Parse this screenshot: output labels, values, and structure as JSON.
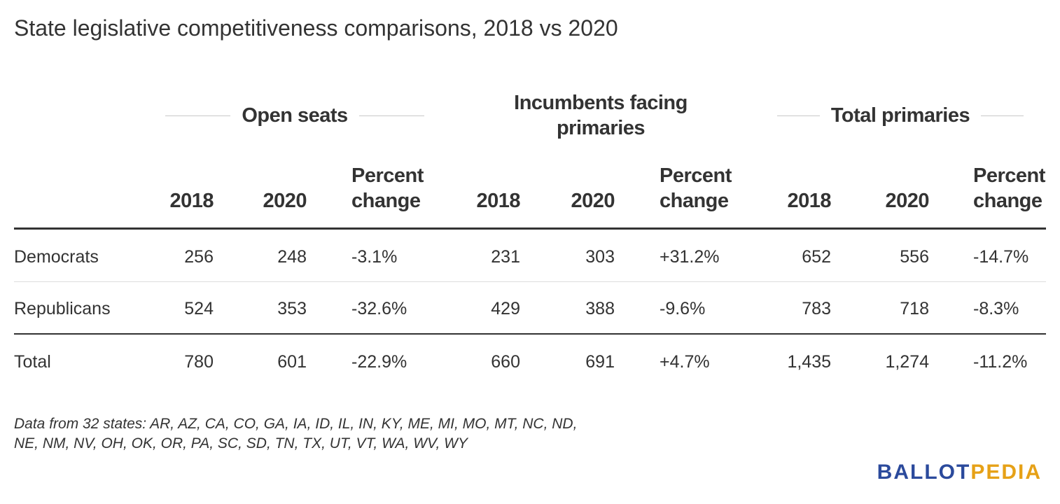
{
  "chart_data": {
    "type": "table",
    "title": "State legislative competitiveness comparisons, 2018 vs 2020",
    "groups": [
      {
        "label": "Open seats",
        "columns": [
          "2018",
          "2020",
          "Percent change"
        ]
      },
      {
        "label": "Incumbents facing primaries",
        "columns": [
          "2018",
          "2020",
          "Percent change"
        ]
      },
      {
        "label": "Total primaries",
        "columns": [
          "2018",
          "2020",
          "Percent change"
        ]
      }
    ],
    "rows": [
      {
        "label": "Democrats",
        "values": [
          "256",
          "248",
          "-3.1%",
          "231",
          "303",
          "+31.2%",
          "652",
          "556",
          "-14.7%"
        ]
      },
      {
        "label": "Republicans",
        "values": [
          "524",
          "353",
          "-32.6%",
          "429",
          "388",
          "-9.6%",
          "783",
          "718",
          "-8.3%"
        ]
      },
      {
        "label": "Total",
        "values": [
          "780",
          "601",
          "-22.9%",
          "660",
          "691",
          "+4.7%",
          "1,435",
          "1,274",
          "-11.2%"
        ]
      }
    ],
    "note": "Data from 32 states: AR, AZ, CA, CO, GA, IA, ID, IL, IN, KY, ME, MI, MO, MT, NC, ND, NE, NM, NV, OH, OK, OR, PA, SC, SD, TN, TX, UT, VT, WA, WV, WY"
  },
  "brand": {
    "logo_part1": "BALLOT",
    "logo_part2": "PEDIA",
    "color_primary": "#2b4a9c",
    "color_accent": "#e6a117"
  }
}
